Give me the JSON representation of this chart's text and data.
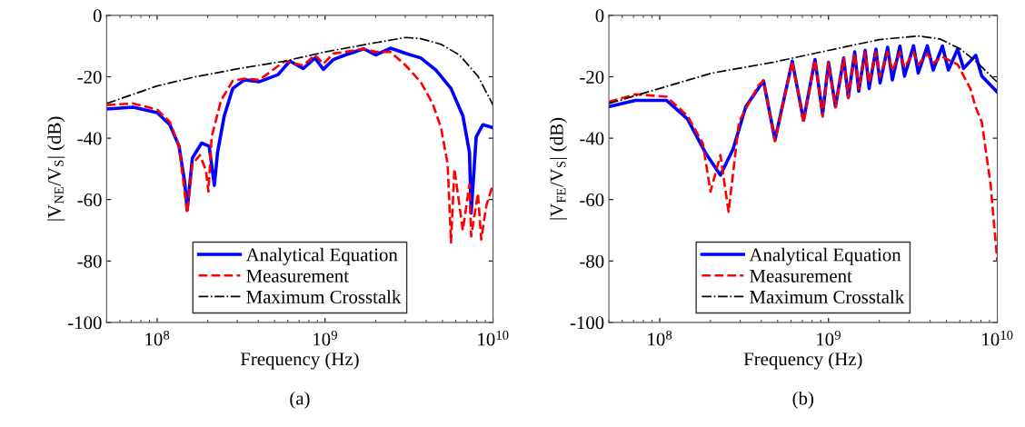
{
  "chart_data": [
    {
      "type": "line",
      "xlabel": "Frequency (Hz)",
      "ylabel": "|V$_{NE}$/V$_{S}$| (dB)",
      "annotations": [
        "(a)"
      ],
      "log": "x",
      "grid": false,
      "legend": "bottom",
      "xlim": [
        50000000.0,
        10000000000.0
      ],
      "xticks": [
        {
          "value": 100000000.0,
          "label": "10$^{8}$"
        },
        {
          "value": 1000000000.0,
          "label": "10$^{9}$"
        },
        {
          "value": 10000000000.0,
          "label": "10$^{10}$"
        }
      ],
      "ylim": [
        -100,
        0
      ],
      "yticks": [
        -100,
        -80,
        -60,
        -40,
        -20,
        0
      ],
      "series": [
        {
          "name": "Analytical Equation",
          "color": "#0000ff",
          "line_style": "solid",
          "x": [
            50000000.0,
            72000000.0,
            100000000.0,
            119000000.0,
            135000000.0,
            146000000.0,
            151000000.0,
            162000000.0,
            184000000.0,
            204000000.0,
            219000000.0,
            229000000.0,
            251000000.0,
            282000000.0,
            331000000.0,
            407000000.0,
            525000000.0,
            617000000.0,
            741000000.0,
            871000000.0,
            977000000.0,
            1120000000.0,
            1320000000.0,
            1700000000.0,
            2000000000.0,
            2450000000.0,
            3020000000.0,
            3720000000.0,
            4570000000.0,
            5620000000.0,
            6610000000.0,
            7240000000.0,
            7410000000.0,
            7940000000.0,
            8710000000.0,
            10000000000.0
          ],
          "values": [
            -30.5,
            -29.9,
            -31.7,
            -35.6,
            -42.6,
            -54.5,
            -63.4,
            -46.5,
            -41.6,
            -42.6,
            -55.4,
            -44.6,
            -32.7,
            -23.8,
            -21,
            -21.6,
            -19.3,
            -14.9,
            -17.3,
            -13.9,
            -17.6,
            -14.4,
            -12.9,
            -10.9,
            -12.9,
            -10.7,
            -12.4,
            -13.9,
            -17.8,
            -23.8,
            -32.7,
            -44.6,
            -64.4,
            -39.6,
            -35.6,
            -36.6
          ]
        },
        {
          "name": "Measurement",
          "color": "#ff0000",
          "line_style": "dashed",
          "x": [
            50000000.0,
            72000000.0,
            100000000.0,
            119000000.0,
            135000000.0,
            151000000.0,
            162000000.0,
            180000000.0,
            195000000.0,
            202000000.0,
            211000000.0,
            240000000.0,
            282000000.0,
            331000000.0,
            407000000.0,
            575000000.0,
            741000000.0,
            871000000.0,
            977000000.0,
            1120000000.0,
            1320000000.0,
            1700000000.0,
            2000000000.0,
            2450000000.0,
            3020000000.0,
            3720000000.0,
            4370000000.0,
            4900000000.0,
            5370000000.0,
            5620000000.0,
            5890000000.0,
            6610000000.0,
            7240000000.0,
            7410000000.0,
            8130000000.0,
            8510000000.0,
            9120000000.0,
            10000000000.0
          ],
          "values": [
            -29.2,
            -28.7,
            -30.7,
            -34.7,
            -42.6,
            -64.4,
            -48.5,
            -45.5,
            -50.5,
            -57.4,
            -39.6,
            -27.7,
            -21.3,
            -20.6,
            -21,
            -14.9,
            -16.3,
            -12.9,
            -15.8,
            -12.4,
            -11.9,
            -10.9,
            -11.9,
            -11.9,
            -16.3,
            -21.8,
            -28.7,
            -36.6,
            -48.5,
            -74,
            -50,
            -70,
            -55,
            -72,
            -58,
            -73,
            -62,
            -55
          ]
        },
        {
          "name": "Maximum Crosstalk",
          "color": "#000000",
          "line_style": "dashdot",
          "x": [
            50000000.0,
            100000000.0,
            166000000.0,
            309000000.0,
            575000000.0,
            1000000000.0,
            2000000000.0,
            3020000000.0,
            3720000000.0,
            4900000000.0,
            6310000000.0,
            8130000000.0,
            10000000000.0
          ],
          "values": [
            -28.7,
            -23,
            -20.1,
            -17.3,
            -14.9,
            -11.9,
            -8.9,
            -7.2,
            -7.6,
            -9.4,
            -12.9,
            -19.8,
            -29.2
          ]
        }
      ]
    },
    {
      "type": "line",
      "xlabel": "Frequency (Hz)",
      "ylabel": "|V$_{FE}$/V$_{S}$| (dB)",
      "annotations": [
        "(b)"
      ],
      "log": "x",
      "grid": false,
      "legend": "bottom",
      "xlim": [
        50000000.0,
        10000000000.0
      ],
      "xticks": [
        {
          "value": 100000000.0,
          "label": "10$^{8}$"
        },
        {
          "value": 1000000000.0,
          "label": "10$^{9}$"
        },
        {
          "value": 10000000000.0,
          "label": "10$^{10}$"
        }
      ],
      "ylim": [
        -100,
        0
      ],
      "yticks": [
        -100,
        -80,
        -60,
        -40,
        -20,
        0
      ],
      "series": [
        {
          "name": "Analytical Equation",
          "color": "#0000ff",
          "line_style": "solid",
          "x": [
            50000000.0,
            72000000.0,
            110000000.0,
            146000000.0,
            186000000.0,
            229000000.0,
            272000000.0,
            324000000.0,
            412000000.0,
            482000000.0,
            610000000.0,
            711000000.0,
            832000000.0,
            923000000.0,
            1000000000.0,
            1100000000.0,
            1230000000.0,
            1310000000.0,
            1430000000.0,
            1510000000.0,
            1650000000.0,
            1740000000.0,
            1910000000.0,
            2020000000.0,
            2240000000.0,
            2390000000.0,
            2650000000.0,
            2820000000.0,
            3190000000.0,
            3400000000.0,
            3850000000.0,
            4170000000.0,
            4730000000.0,
            5130000000.0,
            5820000000.0,
            6310000000.0,
            7450000000.0,
            8090000000.0,
            10000000000.0
          ],
          "values": [
            -29.7,
            -27.7,
            -27.7,
            -33.7,
            -44.6,
            -52,
            -43.6,
            -29.7,
            -21.3,
            -40.6,
            -14.9,
            -34.2,
            -14.4,
            -32.2,
            -15.3,
            -29.7,
            -13.9,
            -26.7,
            -11.9,
            -24.7,
            -11.4,
            -23.8,
            -11,
            -22,
            -10.4,
            -21,
            -10,
            -19.8,
            -9.9,
            -18.8,
            -9.9,
            -17.8,
            -10,
            -17.8,
            -11,
            -17.3,
            -13,
            -19.8,
            -25
          ]
        },
        {
          "name": "Measurement",
          "color": "#ff0000",
          "line_style": "dashed",
          "x": [
            50000000.0,
            72000000.0,
            110000000.0,
            146000000.0,
            180000000.0,
            200000000.0,
            229000000.0,
            256000000.0,
            295000000.0,
            384000000.0,
            412000000.0,
            482000000.0,
            610000000.0,
            711000000.0,
            832000000.0,
            923000000.0,
            1000000000.0,
            1100000000.0,
            1230000000.0,
            1310000000.0,
            1430000000.0,
            1510000000.0,
            1650000000.0,
            1740000000.0,
            1910000000.0,
            2020000000.0,
            2240000000.0,
            2390000000.0,
            2650000000.0,
            2820000000.0,
            3190000000.0,
            3400000000.0,
            3850000000.0,
            4170000000.0,
            4730000000.0,
            5820000000.0,
            6920000000.0,
            7450000000.0,
            8090000000.0,
            9120000000.0,
            10000000000.0
          ],
          "values": [
            -28.2,
            -25.7,
            -26.5,
            -32.7,
            -41.6,
            -57.4,
            -45.5,
            -64,
            -34.7,
            -22.8,
            -21.3,
            -41,
            -15,
            -35,
            -14.5,
            -33,
            -15.5,
            -30,
            -14,
            -27,
            -12.5,
            -24,
            -12,
            -22,
            -12,
            -20,
            -12,
            -18,
            -12,
            -17,
            -12,
            -16,
            -12.5,
            -15.5,
            -13.5,
            -16,
            -23.8,
            -30,
            -34.7,
            -55,
            -80
          ]
        },
        {
          "name": "Maximum Crosstalk",
          "color": "#000000",
          "line_style": "dashdot",
          "x": [
            50000000.0,
            100000000.0,
            204000000.0,
            468000000.0,
            1000000000.0,
            2000000000.0,
            3390000000.0,
            4570000000.0,
            6030000000.0,
            7760000000.0,
            10000000000.0
          ],
          "values": [
            -28.7,
            -23.8,
            -18.8,
            -15.3,
            -11.4,
            -7.9,
            -6.7,
            -7.7,
            -10.9,
            -15.8,
            -21.8
          ]
        }
      ]
    }
  ]
}
